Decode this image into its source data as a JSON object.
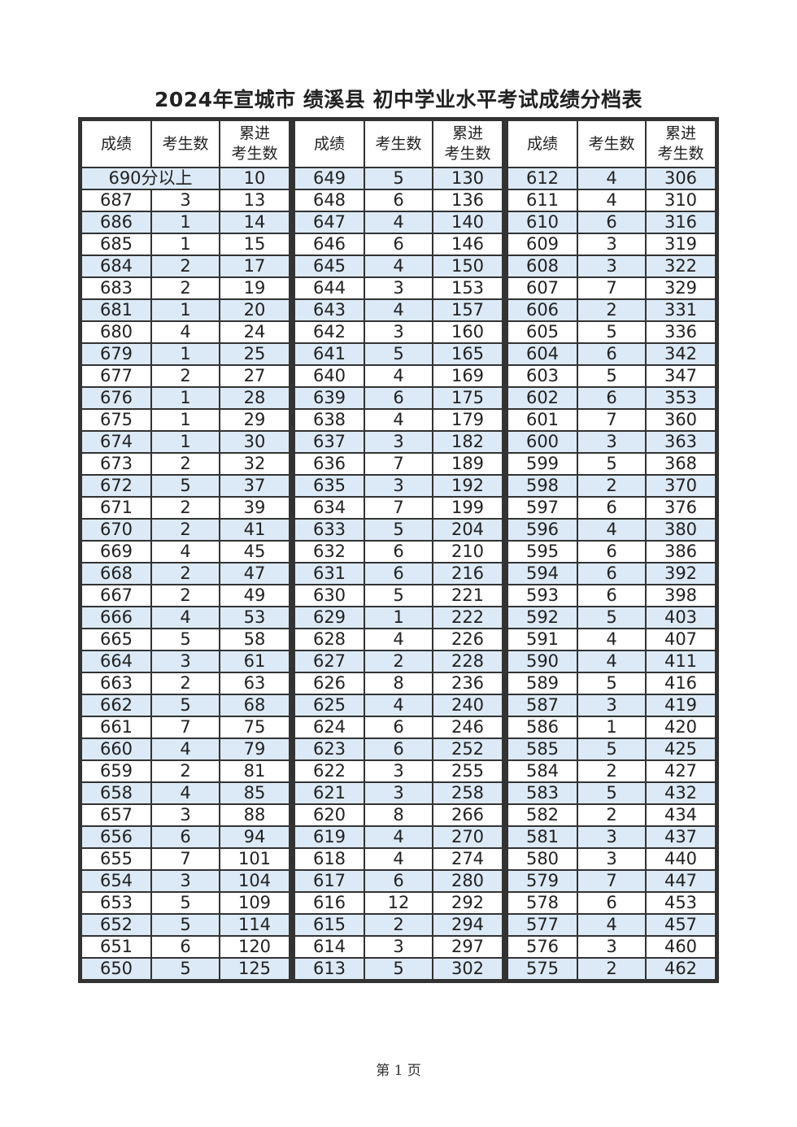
{
  "title": "2024年宣城市  绩溪县  初中学业水平考试成绩分档表",
  "headers": [
    "成绩",
    "考生数",
    "累进\n考生数"
  ],
  "top_row": {
    "label": "690分以上",
    "cumulative": "10"
  },
  "groups": [
    [
      [
        "687",
        "3",
        "13"
      ],
      [
        "686",
        "1",
        "14"
      ],
      [
        "685",
        "1",
        "15"
      ],
      [
        "684",
        "2",
        "17"
      ],
      [
        "683",
        "2",
        "19"
      ],
      [
        "681",
        "1",
        "20"
      ],
      [
        "680",
        "4",
        "24"
      ],
      [
        "679",
        "1",
        "25"
      ],
      [
        "677",
        "2",
        "27"
      ],
      [
        "676",
        "1",
        "28"
      ],
      [
        "675",
        "1",
        "29"
      ],
      [
        "674",
        "1",
        "30"
      ],
      [
        "673",
        "2",
        "32"
      ],
      [
        "672",
        "5",
        "37"
      ],
      [
        "671",
        "2",
        "39"
      ],
      [
        "670",
        "2",
        "41"
      ],
      [
        "669",
        "4",
        "45"
      ],
      [
        "668",
        "2",
        "47"
      ],
      [
        "667",
        "2",
        "49"
      ],
      [
        "666",
        "4",
        "53"
      ],
      [
        "665",
        "5",
        "58"
      ],
      [
        "664",
        "3",
        "61"
      ],
      [
        "663",
        "2",
        "63"
      ],
      [
        "662",
        "5",
        "68"
      ],
      [
        "661",
        "7",
        "75"
      ],
      [
        "660",
        "4",
        "79"
      ],
      [
        "659",
        "2",
        "81"
      ],
      [
        "658",
        "4",
        "85"
      ],
      [
        "657",
        "3",
        "88"
      ],
      [
        "656",
        "6",
        "94"
      ],
      [
        "655",
        "7",
        "101"
      ],
      [
        "654",
        "3",
        "104"
      ],
      [
        "653",
        "5",
        "109"
      ],
      [
        "652",
        "5",
        "114"
      ],
      [
        "651",
        "6",
        "120"
      ],
      [
        "650",
        "5",
        "125"
      ]
    ],
    [
      [
        "649",
        "5",
        "130"
      ],
      [
        "648",
        "6",
        "136"
      ],
      [
        "647",
        "4",
        "140"
      ],
      [
        "646",
        "6",
        "146"
      ],
      [
        "645",
        "4",
        "150"
      ],
      [
        "644",
        "3",
        "153"
      ],
      [
        "643",
        "4",
        "157"
      ],
      [
        "642",
        "3",
        "160"
      ],
      [
        "641",
        "5",
        "165"
      ],
      [
        "640",
        "4",
        "169"
      ],
      [
        "639",
        "6",
        "175"
      ],
      [
        "638",
        "4",
        "179"
      ],
      [
        "637",
        "3",
        "182"
      ],
      [
        "636",
        "7",
        "189"
      ],
      [
        "635",
        "3",
        "192"
      ],
      [
        "634",
        "7",
        "199"
      ],
      [
        "633",
        "5",
        "204"
      ],
      [
        "632",
        "6",
        "210"
      ],
      [
        "631",
        "6",
        "216"
      ],
      [
        "630",
        "5",
        "221"
      ],
      [
        "629",
        "1",
        "222"
      ],
      [
        "628",
        "4",
        "226"
      ],
      [
        "627",
        "2",
        "228"
      ],
      [
        "626",
        "8",
        "236"
      ],
      [
        "625",
        "4",
        "240"
      ],
      [
        "624",
        "6",
        "246"
      ],
      [
        "623",
        "6",
        "252"
      ],
      [
        "622",
        "3",
        "255"
      ],
      [
        "621",
        "3",
        "258"
      ],
      [
        "620",
        "8",
        "266"
      ],
      [
        "619",
        "4",
        "270"
      ],
      [
        "618",
        "4",
        "274"
      ],
      [
        "617",
        "6",
        "280"
      ],
      [
        "616",
        "12",
        "292"
      ],
      [
        "615",
        "2",
        "294"
      ],
      [
        "614",
        "3",
        "297"
      ],
      [
        "613",
        "5",
        "302"
      ]
    ],
    [
      [
        "612",
        "4",
        "306"
      ],
      [
        "611",
        "4",
        "310"
      ],
      [
        "610",
        "6",
        "316"
      ],
      [
        "609",
        "3",
        "319"
      ],
      [
        "608",
        "3",
        "322"
      ],
      [
        "607",
        "7",
        "329"
      ],
      [
        "606",
        "2",
        "331"
      ],
      [
        "605",
        "5",
        "336"
      ],
      [
        "604",
        "6",
        "342"
      ],
      [
        "603",
        "5",
        "347"
      ],
      [
        "602",
        "6",
        "353"
      ],
      [
        "601",
        "7",
        "360"
      ],
      [
        "600",
        "3",
        "363"
      ],
      [
        "599",
        "5",
        "368"
      ],
      [
        "598",
        "2",
        "370"
      ],
      [
        "597",
        "6",
        "376"
      ],
      [
        "596",
        "4",
        "380"
      ],
      [
        "595",
        "6",
        "386"
      ],
      [
        "594",
        "6",
        "392"
      ],
      [
        "593",
        "6",
        "398"
      ],
      [
        "592",
        "5",
        "403"
      ],
      [
        "591",
        "4",
        "407"
      ],
      [
        "590",
        "4",
        "411"
      ],
      [
        "589",
        "5",
        "416"
      ],
      [
        "587",
        "3",
        "419"
      ],
      [
        "586",
        "1",
        "420"
      ],
      [
        "585",
        "5",
        "425"
      ],
      [
        "584",
        "2",
        "427"
      ],
      [
        "583",
        "5",
        "432"
      ],
      [
        "582",
        "2",
        "434"
      ],
      [
        "581",
        "3",
        "437"
      ],
      [
        "580",
        "3",
        "440"
      ],
      [
        "579",
        "7",
        "447"
      ],
      [
        "578",
        "6",
        "453"
      ],
      [
        "577",
        "4",
        "457"
      ],
      [
        "576",
        "3",
        "460"
      ],
      [
        "575",
        "2",
        "462"
      ]
    ]
  ],
  "footer": "第 1 页",
  "colors": {
    "stripe": "#dce9f6",
    "border": "#333333"
  }
}
